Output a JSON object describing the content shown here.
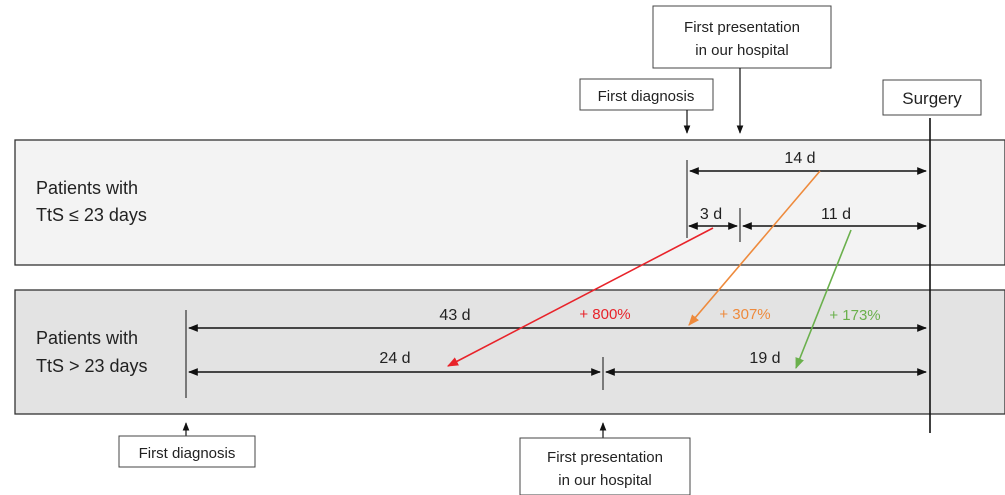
{
  "labels": {
    "first_presentation_top_line1": "First presentation",
    "first_presentation_top_line2": "in our hospital",
    "first_diagnosis_top": "First diagnosis",
    "surgery": "Surgery",
    "group1_line1": "Patients with",
    "group1_line2": "TtS ≤ 23 days",
    "group2_line1": "Patients with",
    "group2_line2": "TtS > 23 days",
    "first_diagnosis_bottom": "First diagnosis",
    "first_presentation_bottom_line1": "First presentation",
    "first_presentation_bottom_line2": "in our hospital"
  },
  "durations": {
    "group1_total": "14 d",
    "group1_diag_to_presentation": "3 d",
    "group1_presentation_to_surgery": "11 d",
    "group2_total": "43 d",
    "group2_diag_to_presentation": "24 d",
    "group2_presentation_to_surgery": "19 d"
  },
  "changes": {
    "diag_to_presentation": "+ 800%",
    "total": "+ 307%",
    "presentation_to_surgery": "+ 173%"
  },
  "colors": {
    "diag_to_presentation": "#e8232a",
    "total": "#ee8a3c",
    "presentation_to_surgery": "#6ab04c",
    "panel1_fill": "#f3f3f3",
    "panel2_fill": "#e3e3e3"
  }
}
